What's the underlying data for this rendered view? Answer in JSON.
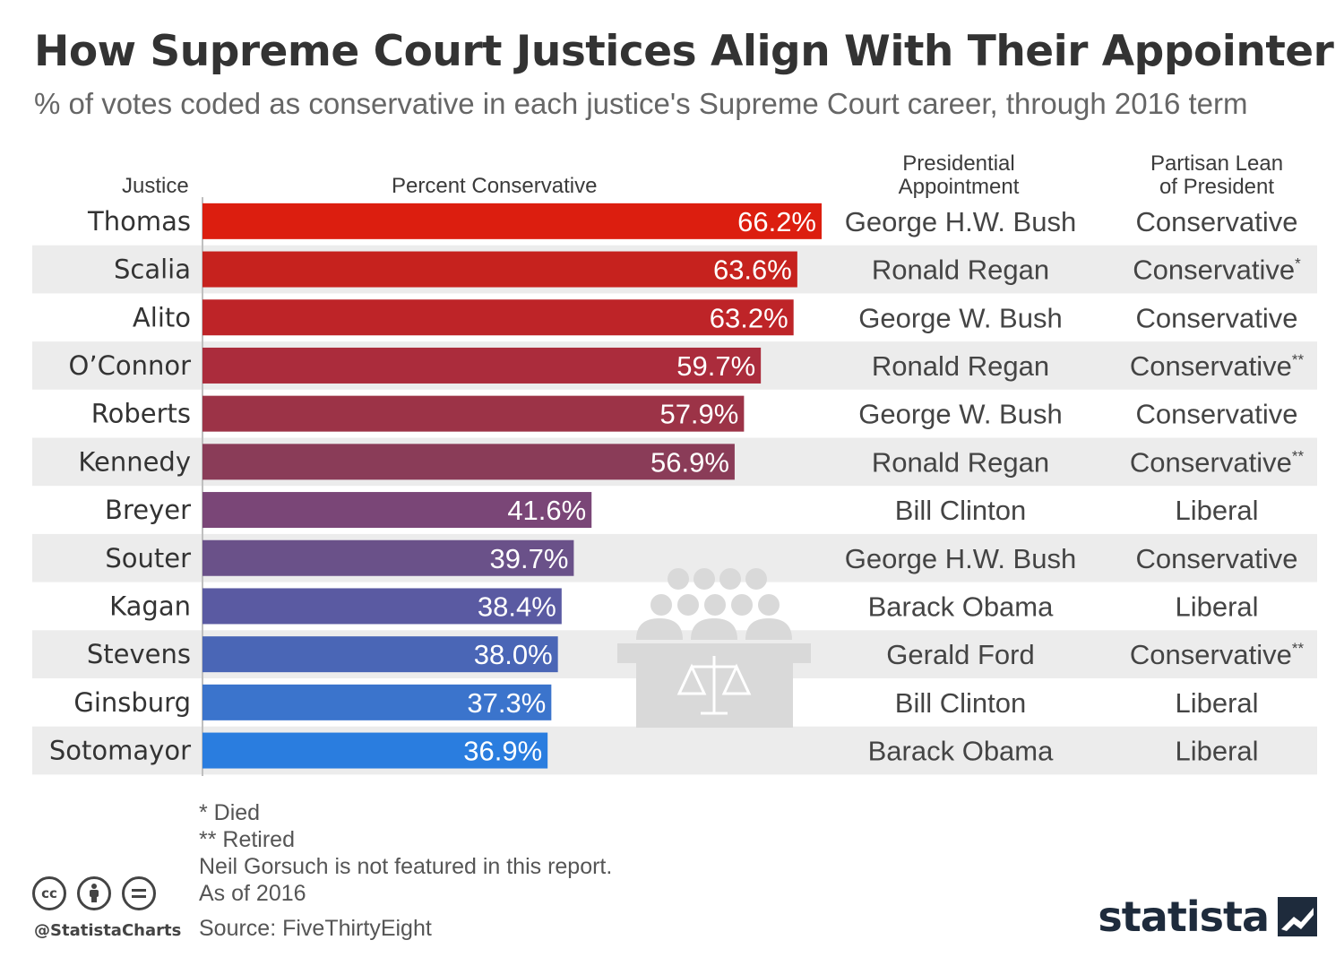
{
  "title": "How Supreme Court Justices Align With Their Appointer",
  "subtitle": "% of votes coded as conservative in each justice's Supreme Court career, through 2016 term",
  "headers": {
    "justice": "Justice",
    "percent": "Percent Conservative",
    "appointment_line1": "Presidential",
    "appointment_line2": "Appointment",
    "lean_line1": "Partisan Lean",
    "lean_line2": "of President"
  },
  "chart_data": {
    "type": "bar",
    "orientation": "horizontal",
    "categories": [
      "Thomas",
      "Scalia",
      "Alito",
      "O’Connor",
      "Roberts",
      "Kennedy",
      "Breyer",
      "Souter",
      "Kagan",
      "Stevens",
      "Ginsburg",
      "Sotomayor"
    ],
    "values": [
      66.2,
      63.6,
      63.2,
      59.7,
      57.9,
      56.9,
      41.6,
      39.7,
      38.4,
      38.0,
      37.3,
      36.9
    ],
    "value_labels": [
      "66.2%",
      "63.6%",
      "63.2%",
      "59.7%",
      "57.9%",
      "56.9%",
      "41.6%",
      "39.7%",
      "38.4%",
      "38.0%",
      "37.3%",
      "36.9%"
    ],
    "appointed_by": [
      "George H.W. Bush",
      "Ronald Regan",
      "George W. Bush",
      "Ronald Regan",
      "George W. Bush",
      "Ronald Regan",
      "Bill Clinton",
      "George H.W. Bush",
      "Barack Obama",
      "Gerald Ford",
      "Bill Clinton",
      "Barack Obama"
    ],
    "partisan_lean": [
      "Conservative",
      "Conservative",
      "Conservative",
      "Conservative",
      "Conservative",
      "Conservative",
      "Liberal",
      "Conservative",
      "Liberal",
      "Conservative",
      "Liberal",
      "Liberal"
    ],
    "lean_marks": [
      "",
      "*",
      "",
      "**",
      "",
      "**",
      "",
      "",
      "",
      "**",
      "",
      ""
    ],
    "colors": [
      "#dc1e0f",
      "#c6221e",
      "#be2428",
      "#ab2c3c",
      "#9c3347",
      "#8a3c58",
      "#7a4677",
      "#6a5189",
      "#5a5aa2",
      "#4a66b6",
      "#3b74cc",
      "#2a7ddf"
    ],
    "xlim": [
      0,
      100
    ],
    "row_stripe_color": "#ececec"
  },
  "footnotes": [
    "*   Died",
    "** Retired",
    "Neil Gorsuch is not featured in this report.",
    "As of 2016"
  ],
  "source": "Source: FiveThirtyEight",
  "handle": "@StatistaCharts",
  "cc_icons": [
    "cc-icon",
    "attribution-icon",
    "no-derivatives-icon"
  ],
  "brand": "statista"
}
